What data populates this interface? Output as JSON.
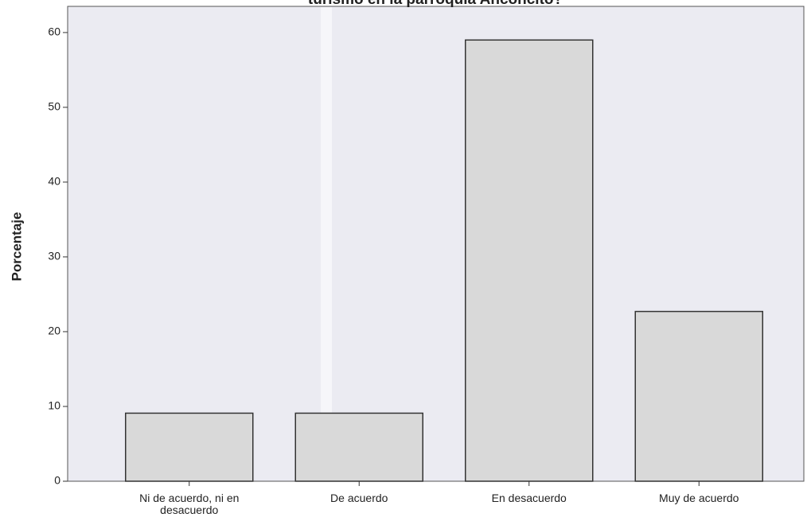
{
  "chart_data": {
    "type": "bar",
    "title": "turismo en la parroquia Anconcito?",
    "y_label": "Porcentaje",
    "categories": [
      "Ni de acuerdo, ni en desacuerdo",
      "De acuerdo",
      "En desacuerdo",
      "Muy de acuerdo"
    ],
    "values": [
      9.1,
      9.1,
      59,
      22.7
    ],
    "color": "#d9d9d9",
    "ylim": [
      0,
      63.5
    ],
    "yticks": [
      0,
      10,
      20,
      30,
      40,
      50,
      60
    ],
    "grid": false
  }
}
